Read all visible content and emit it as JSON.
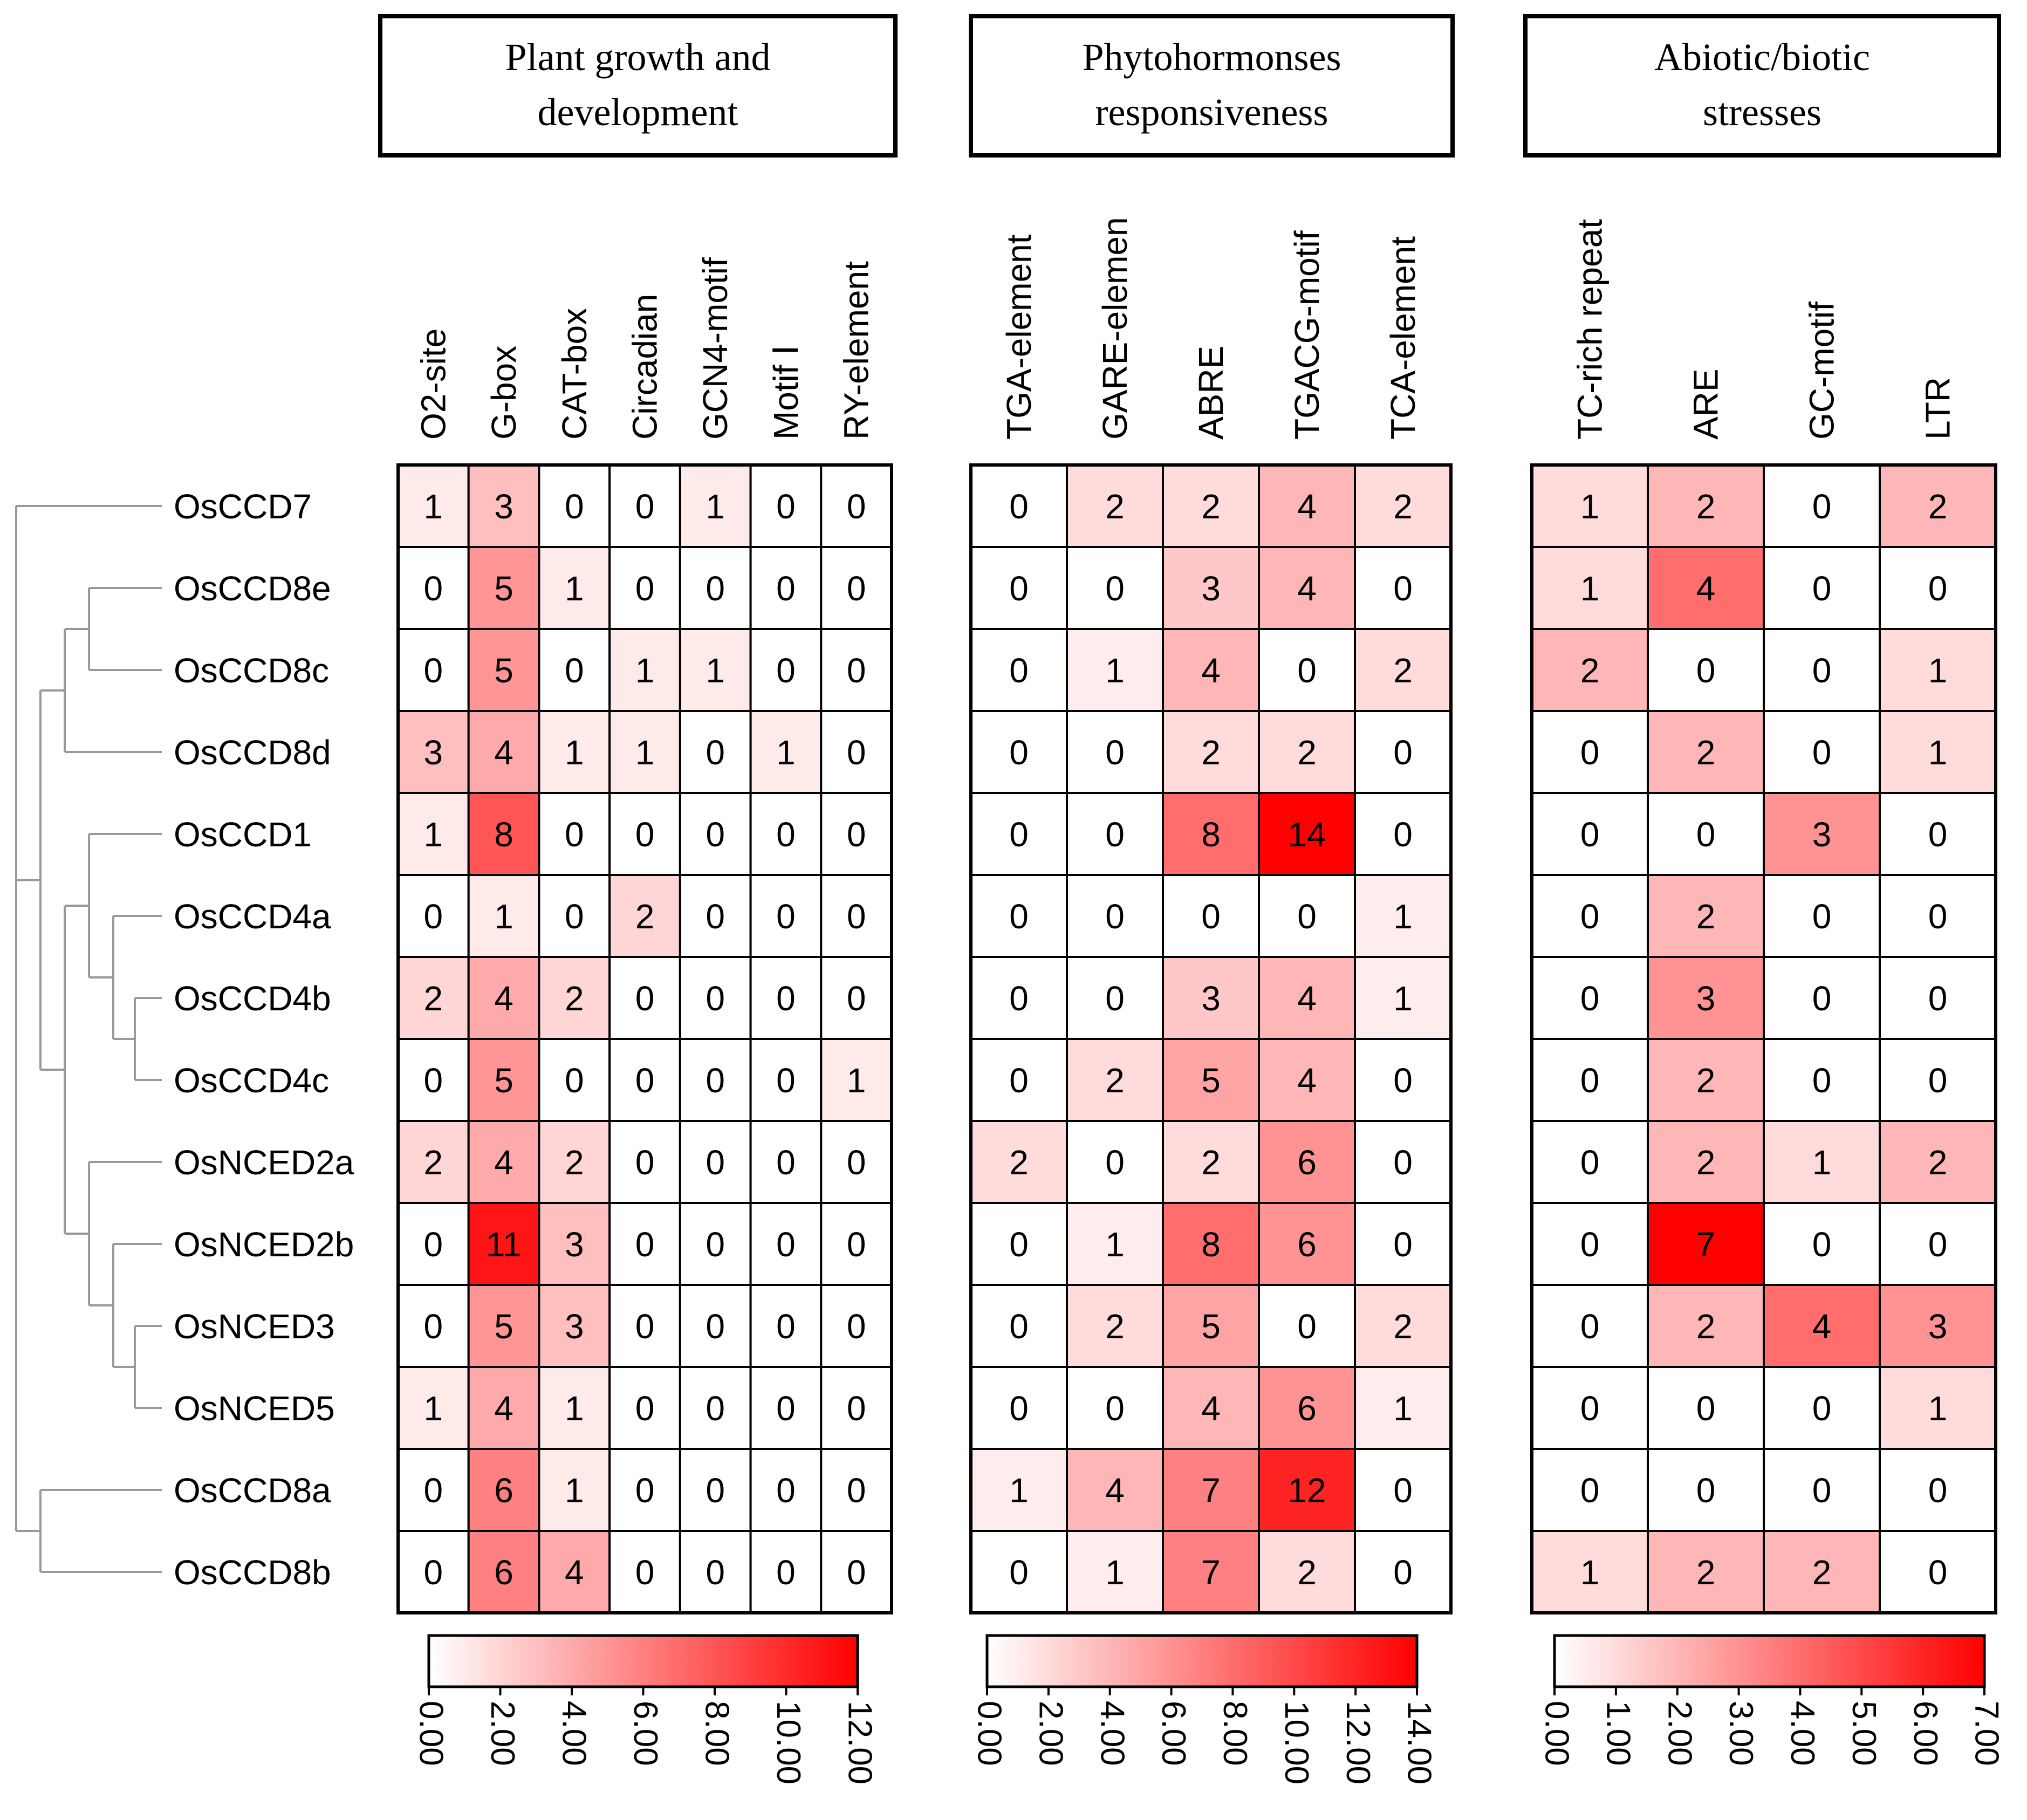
{
  "genes": [
    "OsCCD7",
    "OsCCD8e",
    "OsCCD8c",
    "OsCCD8d",
    "OsCCD1",
    "OsCCD4a",
    "OsCCD4b",
    "OsCCD4c",
    "OsNCED2a",
    "OsNCED2b",
    "OsNCED3",
    "OsNCED5",
    "OsCCD8a",
    "OsCCD8b"
  ],
  "accent_color": "#ff0000",
  "chart_data": [
    {
      "type": "heatmap",
      "title": "Plant growth and development",
      "title_lines": [
        "Plant growth and",
        "development"
      ],
      "columns": [
        "O2-site",
        "G-box",
        "CAT-box",
        "Circadian",
        "GCN4-motif",
        "Motif Ⅰ",
        "RY-element"
      ],
      "vmin": 0,
      "vmax": 12,
      "colorbar_ticks": [
        "0.00",
        "2.00",
        "4.00",
        "6.00",
        "8.00",
        "10.00",
        "12.00"
      ],
      "values": [
        [
          1,
          3,
          0,
          0,
          1,
          0,
          0
        ],
        [
          0,
          5,
          1,
          0,
          0,
          0,
          0
        ],
        [
          0,
          5,
          0,
          1,
          1,
          0,
          0
        ],
        [
          3,
          4,
          1,
          1,
          0,
          1,
          0
        ],
        [
          1,
          8,
          0,
          0,
          0,
          0,
          0
        ],
        [
          0,
          1,
          0,
          2,
          0,
          0,
          0
        ],
        [
          2,
          4,
          2,
          0,
          0,
          0,
          0
        ],
        [
          0,
          5,
          0,
          0,
          0,
          0,
          1
        ],
        [
          2,
          4,
          2,
          0,
          0,
          0,
          0
        ],
        [
          0,
          11,
          3,
          0,
          0,
          0,
          0
        ],
        [
          0,
          5,
          3,
          0,
          0,
          0,
          0
        ],
        [
          1,
          4,
          1,
          0,
          0,
          0,
          0
        ],
        [
          0,
          6,
          1,
          0,
          0,
          0,
          0
        ],
        [
          0,
          6,
          4,
          0,
          0,
          0,
          0
        ]
      ]
    },
    {
      "type": "heatmap",
      "title": "Phytohormonses responsiveness",
      "title_lines": [
        "Phytohormonses",
        "responsiveness"
      ],
      "columns": [
        "TGA-element",
        "GARE-elemen",
        "ABRE",
        "TGACG-motif",
        "TCA-element"
      ],
      "vmin": 0,
      "vmax": 14,
      "colorbar_ticks": [
        "0.00",
        "2.00",
        "4.00",
        "6.00",
        "8.00",
        "10.00",
        "12.00",
        "14.00"
      ],
      "values": [
        [
          0,
          2,
          2,
          4,
          2
        ],
        [
          0,
          0,
          3,
          4,
          0
        ],
        [
          0,
          1,
          4,
          0,
          2
        ],
        [
          0,
          0,
          2,
          2,
          0
        ],
        [
          0,
          0,
          8,
          14,
          0
        ],
        [
          0,
          0,
          0,
          0,
          1
        ],
        [
          0,
          0,
          3,
          4,
          1
        ],
        [
          0,
          2,
          5,
          4,
          0
        ],
        [
          2,
          0,
          2,
          6,
          0
        ],
        [
          0,
          1,
          8,
          6,
          0
        ],
        [
          0,
          2,
          5,
          0,
          2
        ],
        [
          0,
          0,
          4,
          6,
          1
        ],
        [
          1,
          4,
          7,
          12,
          0
        ],
        [
          0,
          1,
          7,
          2,
          0
        ]
      ]
    },
    {
      "type": "heatmap",
      "title": "Abiotic/biotic stresses",
      "title_lines": [
        "Abiotic/biotic",
        "stresses"
      ],
      "columns": [
        "TC-rich repeat",
        "ARE",
        "GC-motif",
        "LTR"
      ],
      "vmin": 0,
      "vmax": 7,
      "colorbar_ticks": [
        "0.00",
        "1.00",
        "2.00",
        "3.00",
        "4.00",
        "5.00",
        "6.00",
        "7.00"
      ],
      "values": [
        [
          1,
          2,
          0,
          2
        ],
        [
          1,
          4,
          0,
          0
        ],
        [
          2,
          0,
          0,
          1
        ],
        [
          0,
          2,
          0,
          1
        ],
        [
          0,
          0,
          3,
          0
        ],
        [
          0,
          2,
          0,
          0
        ],
        [
          0,
          3,
          0,
          0
        ],
        [
          0,
          2,
          0,
          0
        ],
        [
          0,
          2,
          1,
          2
        ],
        [
          0,
          7,
          0,
          0
        ],
        [
          0,
          2,
          4,
          3
        ],
        [
          0,
          0,
          0,
          1
        ],
        [
          0,
          0,
          0,
          0
        ],
        [
          1,
          2,
          2,
          0
        ]
      ]
    }
  ]
}
